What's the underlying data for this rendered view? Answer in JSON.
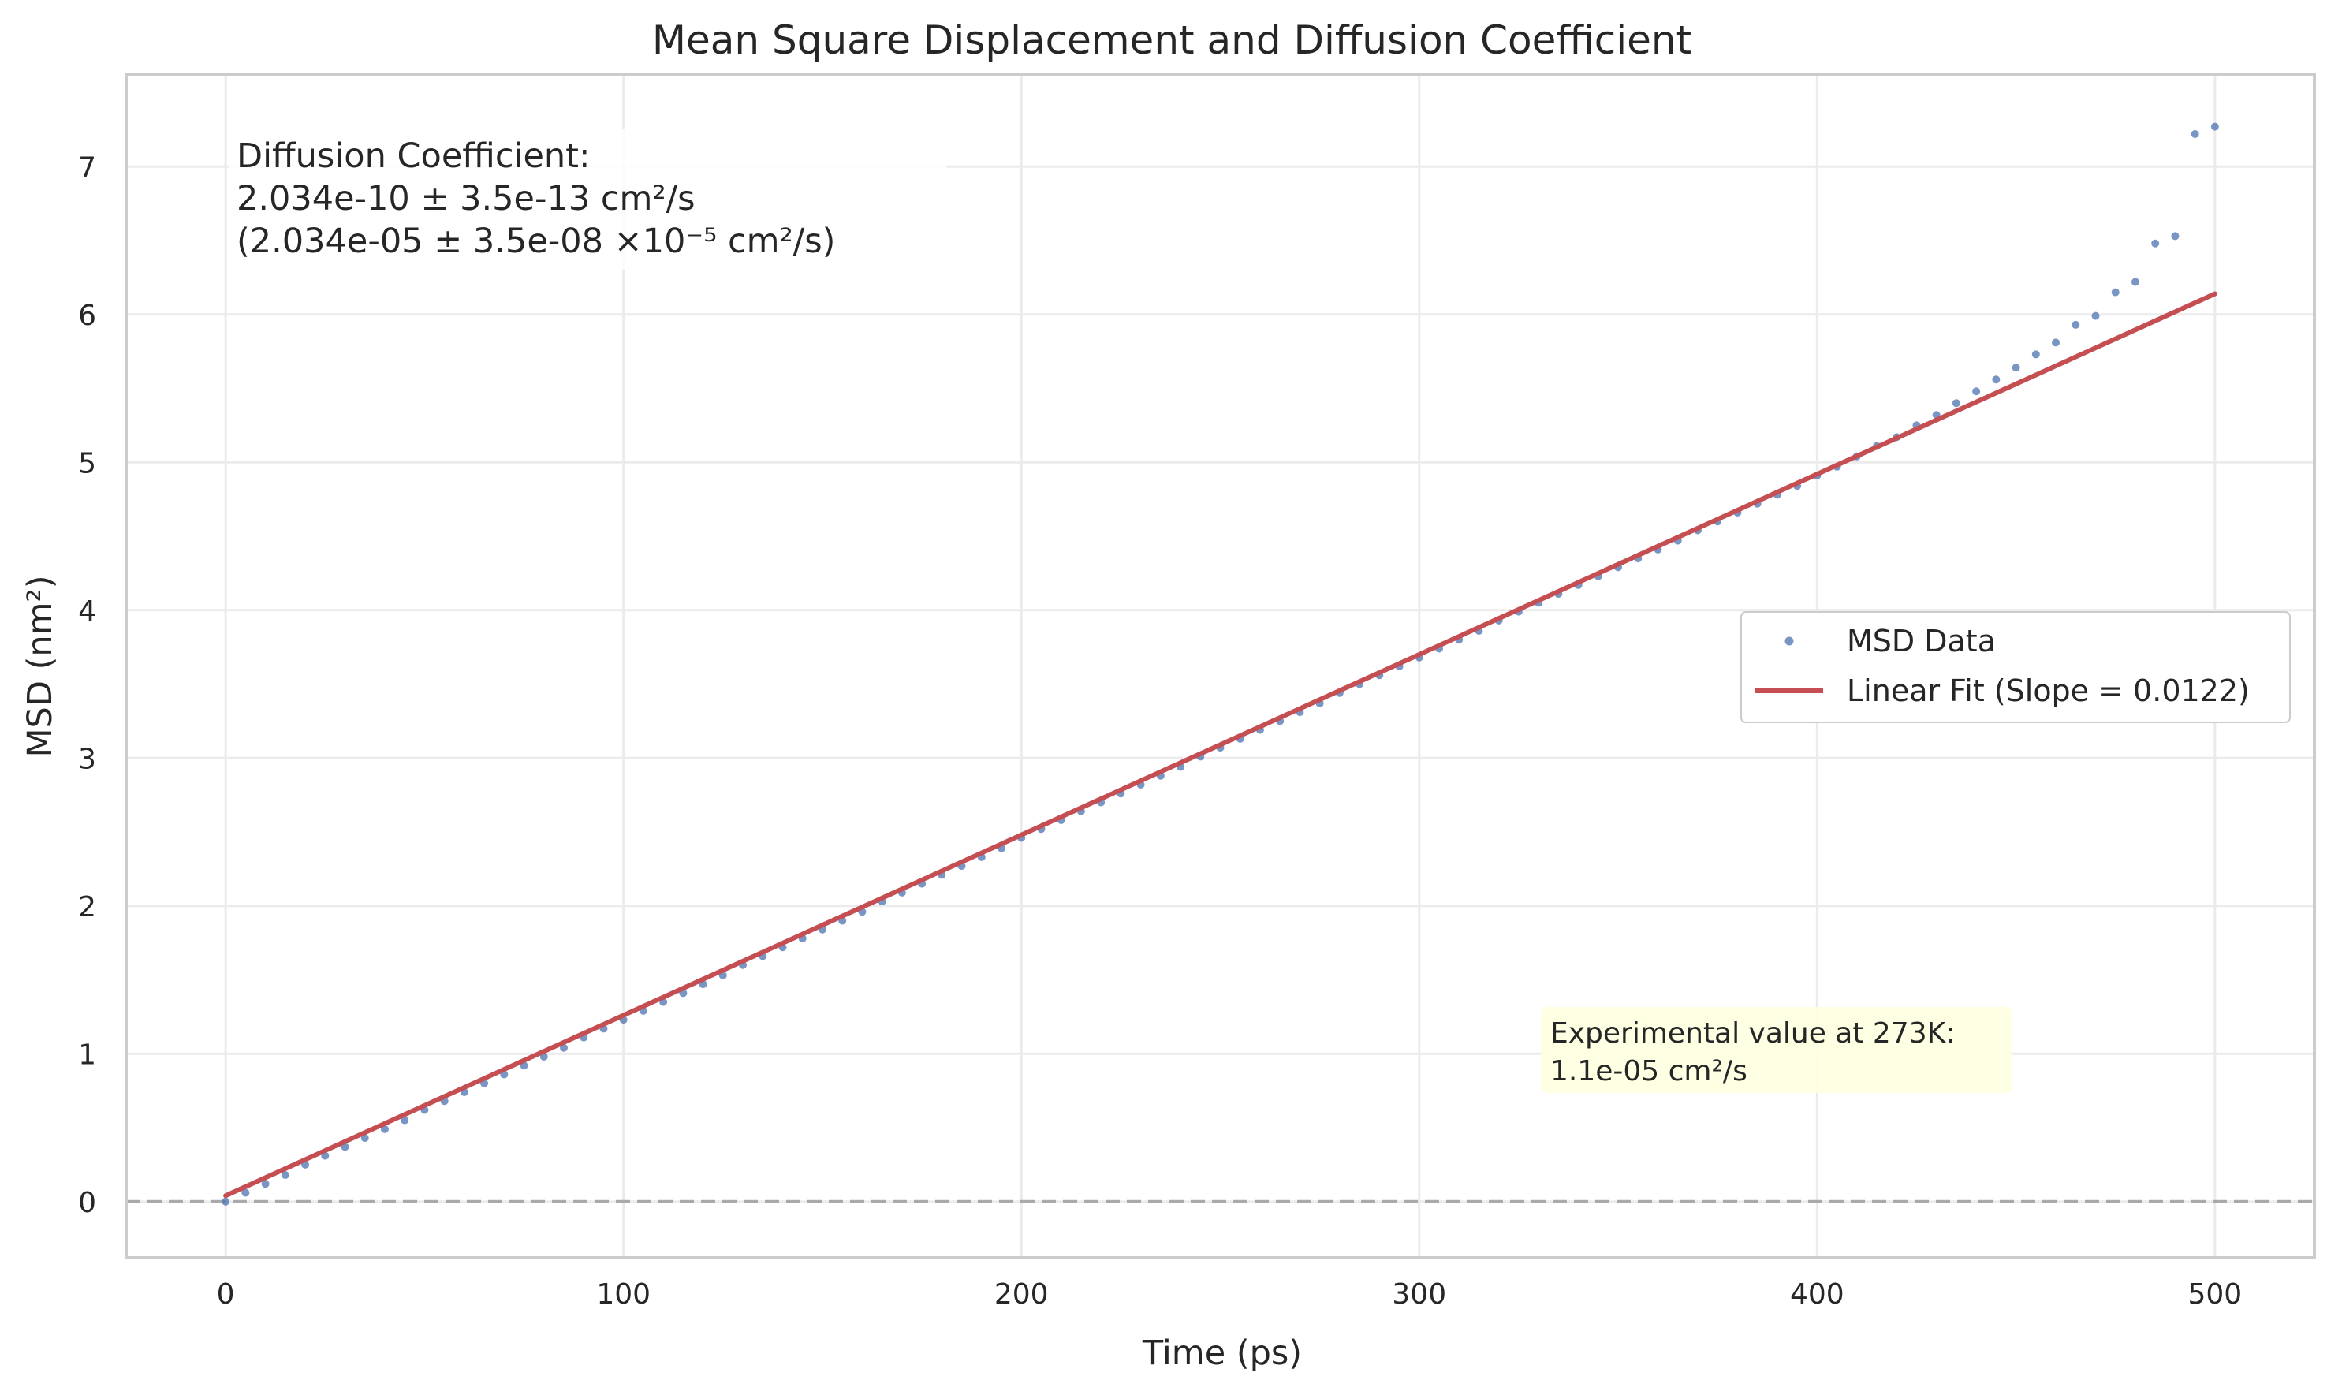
{
  "chart_data": {
    "type": "scatter",
    "title": "Mean Square Displacement and Diffusion Coefficient",
    "xlabel": "Time (ps)",
    "ylabel": "MSD (nm²)",
    "xlim": [
      -25,
      525
    ],
    "ylim": [
      -0.38,
      7.62
    ],
    "xticks": [
      0,
      100,
      200,
      300,
      400,
      500
    ],
    "yticks": [
      0,
      1,
      2,
      3,
      4,
      5,
      6,
      7
    ],
    "grid": true,
    "legend_position": "center-right",
    "colors": {
      "data": "#4c72b0",
      "fit": "#c44e52",
      "zero_line": "#999999",
      "grid": "#ebebeb",
      "spine": "#cccccc",
      "annotation_bg": "#ffffe0"
    },
    "series": [
      {
        "name": "MSD Data",
        "kind": "scatter",
        "x": [
          0,
          5,
          10,
          15,
          20,
          25,
          30,
          35,
          40,
          45,
          50,
          55,
          60,
          65,
          70,
          75,
          80,
          85,
          90,
          95,
          100,
          105,
          110,
          115,
          120,
          125,
          130,
          135,
          140,
          145,
          150,
          155,
          160,
          165,
          170,
          175,
          180,
          185,
          190,
          195,
          200,
          205,
          210,
          215,
          220,
          225,
          230,
          235,
          240,
          245,
          250,
          255,
          260,
          265,
          270,
          275,
          280,
          285,
          290,
          295,
          300,
          305,
          310,
          315,
          320,
          325,
          330,
          335,
          340,
          345,
          350,
          355,
          360,
          365,
          370,
          375,
          380,
          385,
          390,
          395,
          400,
          405,
          410,
          415,
          420,
          425,
          430,
          435,
          440,
          445,
          450,
          455,
          460,
          465,
          470,
          475,
          480,
          485,
          490,
          495,
          500
        ],
        "y": [
          0.0,
          0.06,
          0.12,
          0.18,
          0.25,
          0.31,
          0.37,
          0.43,
          0.49,
          0.55,
          0.62,
          0.68,
          0.74,
          0.8,
          0.86,
          0.92,
          0.98,
          1.04,
          1.11,
          1.17,
          1.23,
          1.29,
          1.35,
          1.41,
          1.47,
          1.53,
          1.6,
          1.66,
          1.72,
          1.78,
          1.84,
          1.9,
          1.96,
          2.03,
          2.09,
          2.15,
          2.21,
          2.27,
          2.33,
          2.39,
          2.46,
          2.52,
          2.58,
          2.64,
          2.7,
          2.76,
          2.82,
          2.88,
          2.94,
          3.01,
          3.07,
          3.13,
          3.19,
          3.25,
          3.31,
          3.37,
          3.44,
          3.5,
          3.56,
          3.62,
          3.68,
          3.74,
          3.8,
          3.86,
          3.93,
          3.99,
          4.05,
          4.11,
          4.17,
          4.23,
          4.29,
          4.35,
          4.41,
          4.47,
          4.54,
          4.6,
          4.66,
          4.72,
          4.78,
          4.84,
          4.91,
          4.97,
          5.04,
          5.11,
          5.17,
          5.25,
          5.32,
          5.4,
          5.48,
          5.56,
          5.64,
          5.73,
          5.81,
          5.93,
          5.99,
          6.15,
          6.22,
          6.48,
          6.53,
          7.22,
          7.27
        ]
      },
      {
        "name": "Linear Fit (Slope = 0.0122)",
        "kind": "line",
        "x": [
          0,
          500
        ],
        "y": [
          0.04,
          6.14
        ]
      }
    ],
    "annotations": [
      {
        "lines": [
          "Diffusion Coefficient:",
          "2.034e-10 ± 3.5e-13 cm²/s",
          "(2.034e-05 ± 3.5e-08 ×10⁻⁵ cm²/s)"
        ]
      },
      {
        "lines": [
          "Experimental value at 273K:",
          "1.1e-05 cm²/s"
        ]
      }
    ]
  }
}
